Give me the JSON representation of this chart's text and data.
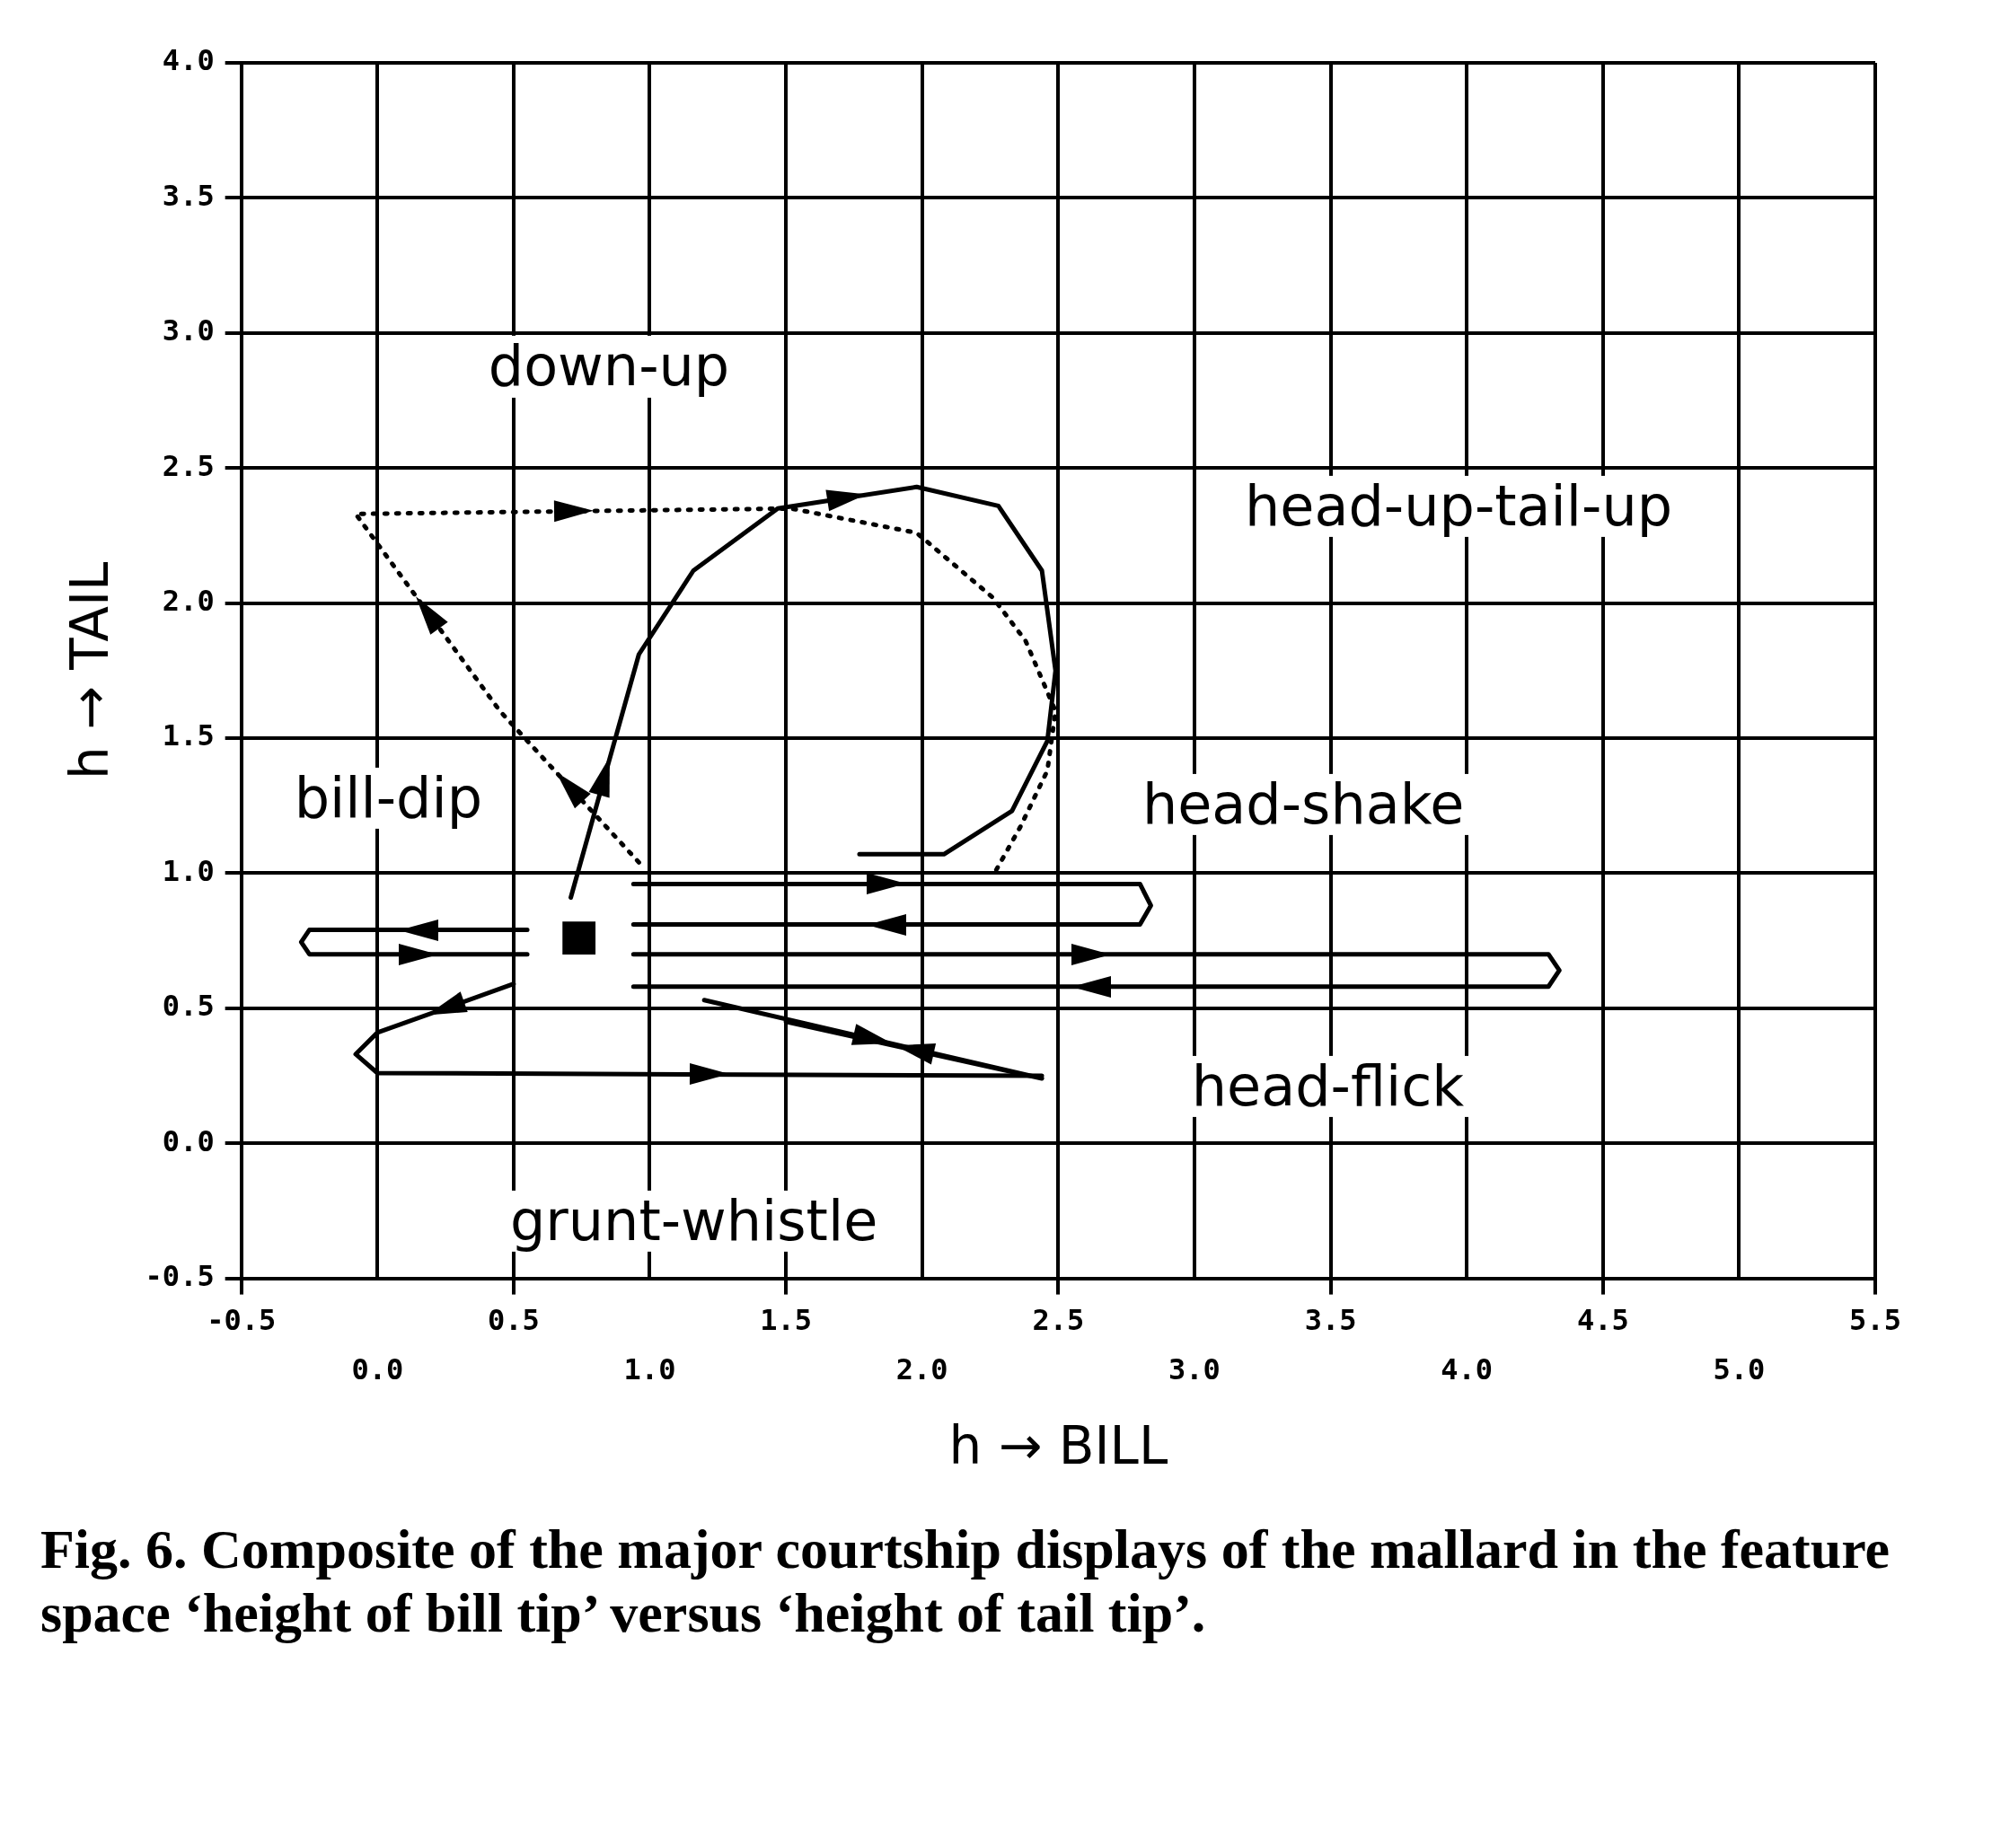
{
  "chart_data": {
    "type": "line",
    "xlabel": "h → BILL",
    "ylabel": "h → TAIL",
    "xlim": [
      -0.5,
      5.5
    ],
    "ylim": [
      -0.5,
      4.0
    ],
    "xticks": [
      {
        "value": -0.5,
        "label": "-0.5"
      },
      {
        "value": 0.5,
        "label": "0.5"
      },
      {
        "value": 1.5,
        "label": "1.5"
      },
      {
        "value": 2.5,
        "label": "2.5"
      },
      {
        "value": 3.5,
        "label": "3.5"
      },
      {
        "value": 4.5,
        "label": "4.5"
      },
      {
        "value": 5.5,
        "label": "5.5"
      }
    ],
    "x2lim": [
      -0.5,
      5.5
    ],
    "x2ticks": [
      {
        "value": 0,
        "label": "0.0"
      },
      {
        "value": 1,
        "label": "1.0"
      },
      {
        "value": 2,
        "label": "2.0"
      },
      {
        "value": 3,
        "label": "3.0"
      },
      {
        "value": 4,
        "label": "4.0"
      },
      {
        "value": 5,
        "label": "5.0"
      }
    ],
    "yticks": [
      {
        "value": -0.5,
        "label": "-0.5"
      },
      {
        "value": 0,
        "label": "0.0"
      },
      {
        "value": 0.5,
        "label": "0.5"
      },
      {
        "value": 1,
        "label": "1.0"
      },
      {
        "value": 1.5,
        "label": "1.5"
      },
      {
        "value": 2,
        "label": "2.0"
      },
      {
        "value": 2.5,
        "label": "2.5"
      },
      {
        "value": 3,
        "label": "3.0"
      },
      {
        "value": 3.5,
        "label": "3.5"
      },
      {
        "value": 4,
        "label": "4.0"
      }
    ],
    "grid": true,
    "marker": "none",
    "series": [
      {
        "type": "line",
        "line_style": "dotted",
        "color": "#000000",
        "x": [
          0.96,
          0.45,
          -0.08,
          1.52,
          1.98,
          2.26,
          2.38,
          2.49,
          2.46,
          2.36,
          2.26
        ],
        "values": [
          1.04,
          1.6,
          2.33,
          2.35,
          2.26,
          2.02,
          1.86,
          1.6,
          1.38,
          1.17,
          0.99
        ]
      },
      {
        "type": "line",
        "line_style": "solid",
        "color": "#000000",
        "x": [
          0.71,
          0.96,
          1.16,
          1.47,
          1.98,
          2.28,
          2.44,
          2.49,
          2.46,
          2.33,
          2.08,
          1.77
        ],
        "values": [
          0.91,
          1.81,
          2.12,
          2.35,
          2.43,
          2.36,
          2.12,
          1.75,
          1.49,
          1.23,
          1.07,
          1.07
        ]
      },
      {
        "type": "line",
        "line_style": "solid",
        "color": "#000000",
        "x": [
          0.94,
          2.8,
          2.84,
          2.8,
          0.94
        ],
        "values": [
          0.96,
          0.96,
          0.88,
          0.81,
          0.81
        ]
      },
      {
        "type": "line",
        "line_style": "solid",
        "color": "#000000",
        "x": [
          0.94,
          4.3,
          4.34,
          4.3,
          0.94
        ],
        "values": [
          0.7,
          0.7,
          0.64,
          0.58,
          0.58
        ]
      },
      {
        "type": "line",
        "line_style": "solid",
        "color": "#000000",
        "x": [
          1.2,
          2.44,
          1.5
        ],
        "values": [
          0.53,
          0.24,
          0.45
        ]
      },
      {
        "type": "line",
        "line_style": "solid",
        "color": "#000000",
        "x": [
          0.55,
          -0.25,
          -0.28,
          -0.25,
          0.55
        ],
        "values": [
          0.79,
          0.79,
          0.745,
          0.7,
          0.7
        ]
      },
      {
        "type": "line",
        "line_style": "solid",
        "color": "#000000",
        "x": [
          0.5,
          0,
          -0.08,
          0,
          2.44
        ],
        "values": [
          0.59,
          0.41,
          0.33,
          0.26,
          0.25
        ]
      },
      {
        "type": "scatter",
        "marker": "square",
        "color": "#000000",
        "x": [
          0.74
        ],
        "values": [
          0.76
        ]
      }
    ],
    "annotations": [
      "down-up",
      "head-up-tail-up",
      "bill-dip",
      "head-shake",
      "head-flick",
      "grunt-whistle",
      "Fig. 6. Composite of the major courtship displays of the mallard in the feature space ‘height of bill tip’ versus ‘height of tail tip’."
    ]
  }
}
